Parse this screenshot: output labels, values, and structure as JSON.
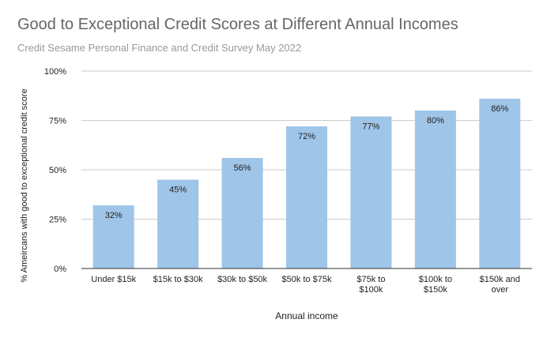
{
  "chart_data": {
    "type": "bar",
    "title": "Good to Exceptional Credit Scores at Different Annual Incomes",
    "subtitle": "Credit Sesame Personal Finance and Credit Survey May 2022",
    "xlabel": "Annual income",
    "ylabel": "% Ameircans with good to exceptional credit score",
    "categories": [
      [
        "Under $15k"
      ],
      [
        "$15k to $30k"
      ],
      [
        "$30k to $50k"
      ],
      [
        "$50k to $75k"
      ],
      [
        "$75k to",
        "$100k"
      ],
      [
        "$100k to",
        "$150k"
      ],
      [
        "$150k and",
        "over"
      ]
    ],
    "values": [
      32,
      45,
      56,
      72,
      77,
      80,
      86
    ],
    "value_labels": [
      "32%",
      "45%",
      "56%",
      "72%",
      "77%",
      "80%",
      "86%"
    ],
    "ylim": [
      0,
      100
    ],
    "yticks": [
      0,
      25,
      50,
      75,
      100
    ],
    "ytick_labels": [
      "0%",
      "25%",
      "50%",
      "75%",
      "100%"
    ],
    "grid": true,
    "legend": "none",
    "colors": {
      "bar": "#9fc5e8",
      "grid": "#cccccc",
      "axis": "#333333",
      "title": "#666666",
      "subtitle": "#999999",
      "text": "#222222"
    }
  }
}
